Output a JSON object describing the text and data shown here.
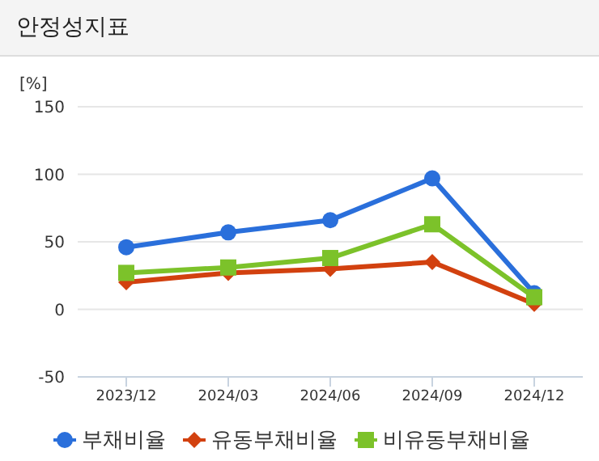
{
  "chart_data": {
    "type": "line",
    "title": "안정성지표",
    "ylabel": "[%]",
    "categories": [
      "2023/12",
      "2024/03",
      "2024/06",
      "2024/09",
      "2024/12"
    ],
    "series": [
      {
        "name": "부채비율",
        "color": "#2a6fdb",
        "marker": "circle",
        "values": [
          46,
          57,
          66,
          97,
          12
        ]
      },
      {
        "name": "유동부채비율",
        "color": "#d2410f",
        "marker": "diamond",
        "values": [
          20,
          27,
          30,
          35,
          4
        ]
      },
      {
        "name": "비유동부채비율",
        "color": "#7cc22a",
        "marker": "square",
        "values": [
          27,
          31,
          38,
          63,
          9
        ]
      }
    ],
    "ylim": [
      -50,
      150
    ],
    "yticks": [
      -50,
      0,
      50,
      100,
      150
    ],
    "grid": "y",
    "legend": "bottom",
    "line_style": "solid"
  }
}
